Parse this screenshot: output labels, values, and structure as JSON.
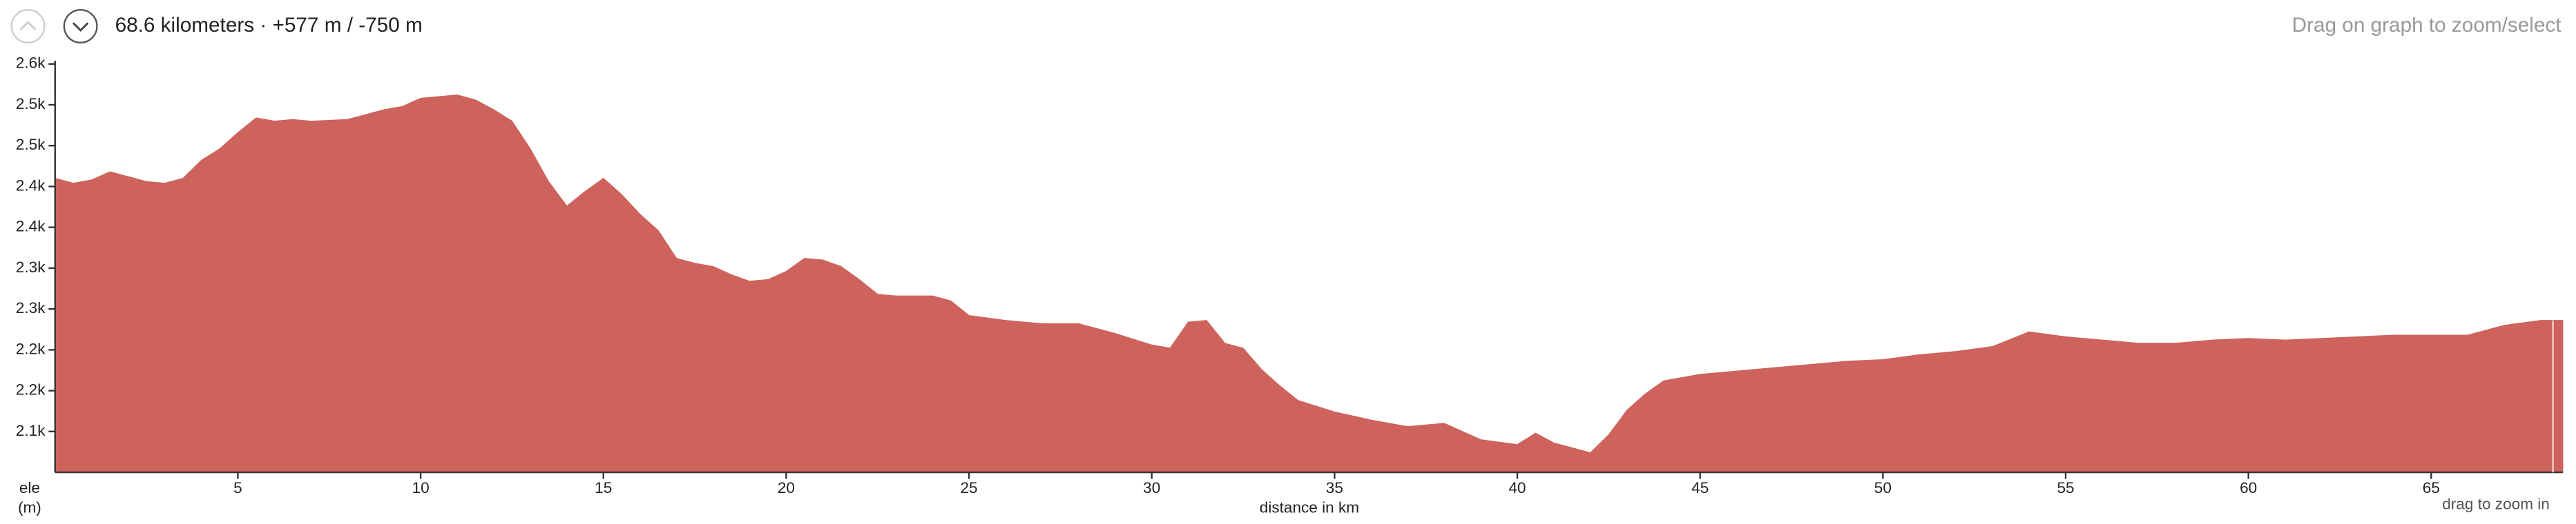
{
  "header": {
    "summary": "68.6 kilometers · +577 m / -750 m",
    "hint": "Drag on graph to zoom/select"
  },
  "chart_data": {
    "type": "area",
    "color": "#cd635c",
    "y_label_line1": "ele",
    "y_label_line2": "(m)",
    "x_label": "distance in km",
    "zoom_hint": "drag to zoom in",
    "xlim": [
      0,
      68.6
    ],
    "ylim": [
      2100,
      2600
    ],
    "xticks": [
      5,
      10,
      15,
      20,
      25,
      30,
      35,
      40,
      45,
      50,
      55,
      60,
      65
    ],
    "yticks": [
      {
        "value": 2150,
        "label": "2.1k"
      },
      {
        "value": 2200,
        "label": "2.2k"
      },
      {
        "value": 2250,
        "label": "2.2k"
      },
      {
        "value": 2300,
        "label": "2.3k"
      },
      {
        "value": 2350,
        "label": "2.3k"
      },
      {
        "value": 2400,
        "label": "2.4k"
      },
      {
        "value": 2450,
        "label": "2.4k"
      },
      {
        "value": 2500,
        "label": "2.5k"
      },
      {
        "value": 2550,
        "label": "2.5k"
      },
      {
        "value": 2600,
        "label": "2.6k"
      }
    ],
    "x": [
      0,
      0.5,
      1,
      1.5,
      2,
      2.5,
      3,
      3.5,
      4,
      4.5,
      5,
      5.5,
      6,
      6.5,
      7,
      8,
      8.5,
      9,
      9.5,
      10,
      10.5,
      11,
      11.5,
      12,
      12.5,
      13,
      13.5,
      14,
      14.5,
      15,
      15.5,
      16,
      16.5,
      17,
      17.5,
      18,
      18.5,
      19,
      19.5,
      20,
      20.5,
      21,
      21.5,
      22,
      22.5,
      23,
      24,
      24.5,
      25,
      26,
      27,
      28,
      29,
      30,
      30.5,
      31,
      31.5,
      32,
      32.5,
      33,
      33.5,
      34,
      35,
      36,
      37,
      38,
      39,
      40,
      40.5,
      41,
      42,
      42.5,
      43,
      43.5,
      44,
      45,
      46,
      47,
      48,
      49,
      50,
      51,
      52,
      53,
      54,
      55,
      56,
      57,
      58,
      59,
      60,
      61,
      62,
      63,
      64,
      65,
      66,
      67,
      68,
      68.6
    ],
    "values": [
      2460,
      2454,
      2458,
      2468,
      2462,
      2456,
      2454,
      2460,
      2482,
      2496,
      2516,
      2534,
      2530,
      2532,
      2530,
      2532,
      2538,
      2544,
      2548,
      2558,
      2560,
      2562,
      2556,
      2544,
      2530,
      2496,
      2456,
      2426,
      2444,
      2460,
      2440,
      2416,
      2396,
      2362,
      2356,
      2352,
      2342,
      2334,
      2336,
      2346,
      2362,
      2360,
      2352,
      2336,
      2318,
      2316,
      2316,
      2310,
      2292,
      2286,
      2282,
      2282,
      2270,
      2256,
      2252,
      2284,
      2286,
      2258,
      2252,
      2226,
      2206,
      2188,
      2174,
      2164,
      2156,
      2160,
      2140,
      2134,
      2148,
      2136,
      2124,
      2146,
      2176,
      2196,
      2212,
      2220,
      2224,
      2228,
      2232,
      2236,
      2238,
      2244,
      2248,
      2254,
      2272,
      2266,
      2262,
      2258,
      2258,
      2262,
      2264,
      2262,
      2264,
      2266,
      2268,
      2268,
      2268,
      2280,
      2286,
      2286
    ]
  }
}
